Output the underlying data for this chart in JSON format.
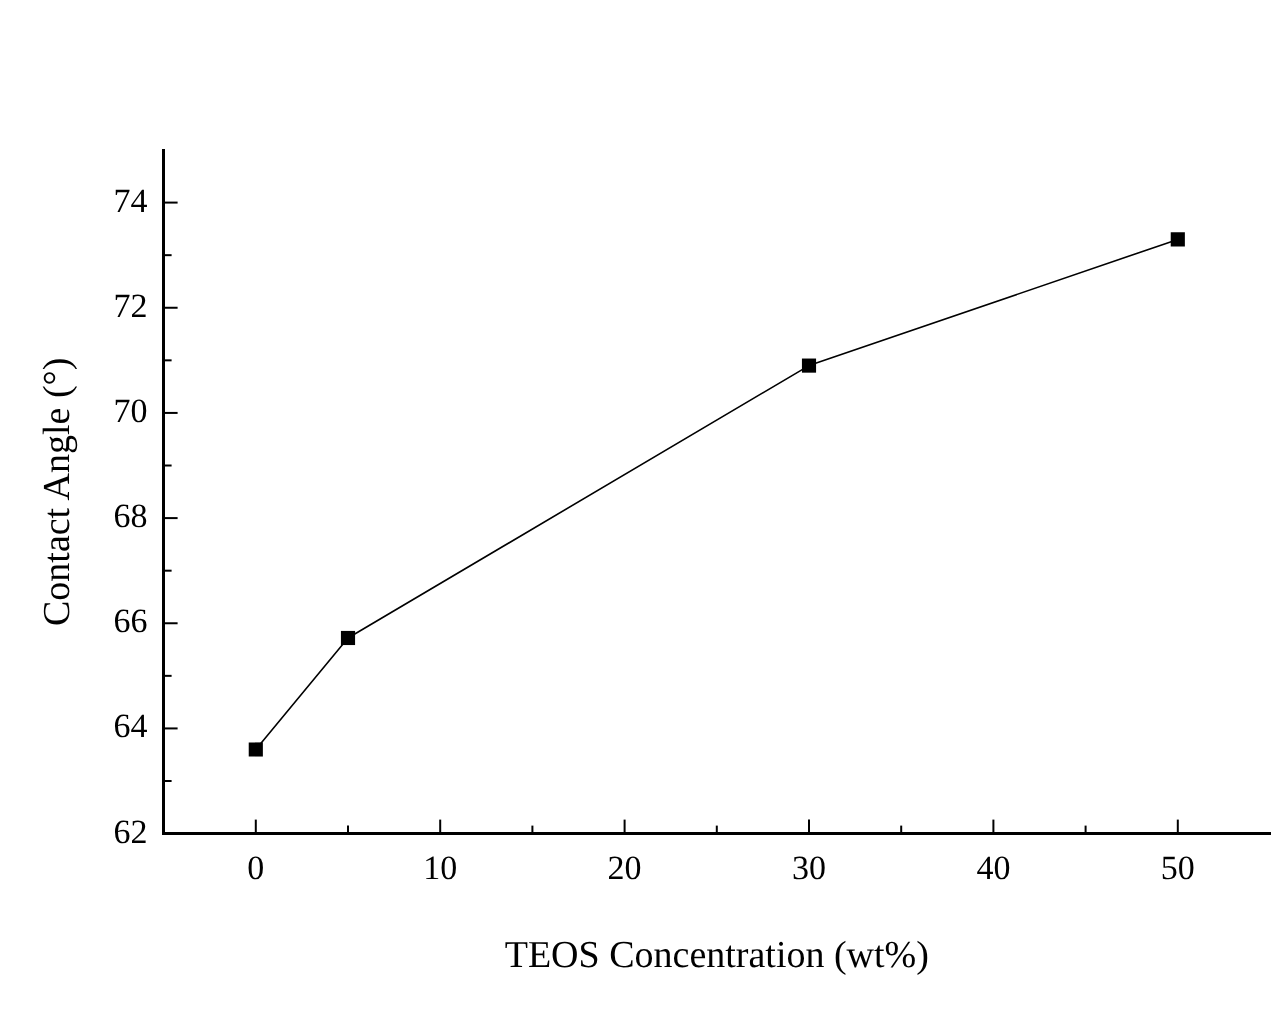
{
  "chart_data": {
    "type": "line",
    "xlabel": "TEOS Concentration (wt%)",
    "ylabel": "Contact Angle (°)",
    "x": [
      0,
      5,
      30,
      50
    ],
    "series": [
      {
        "color": "#000000",
        "values": [
          63.6,
          65.72,
          70.9,
          73.3
        ]
      }
    ],
    "xlim": [
      -5,
      55
    ],
    "ylim": [
      62,
      75
    ],
    "xticks": [
      0,
      {
        "value": 5,
        "label": null
      },
      10,
      {
        "value": 15,
        "label": null
      },
      20,
      {
        "value": 25,
        "label": null
      },
      30,
      {
        "value": 35,
        "label": null
      },
      40,
      {
        "value": 45,
        "label": null
      },
      50
    ],
    "yticks": [
      62,
      {
        "value": 63,
        "label": null
      },
      64,
      {
        "value": 65,
        "label": null
      },
      66,
      {
        "value": 67,
        "label": null
      },
      68,
      {
        "value": 69,
        "label": null
      },
      70,
      {
        "value": 71,
        "label": null
      },
      72,
      {
        "value": 73,
        "label": null
      },
      74
    ],
    "grid": false,
    "legend": false,
    "marker": "square",
    "line_style": "solid"
  }
}
